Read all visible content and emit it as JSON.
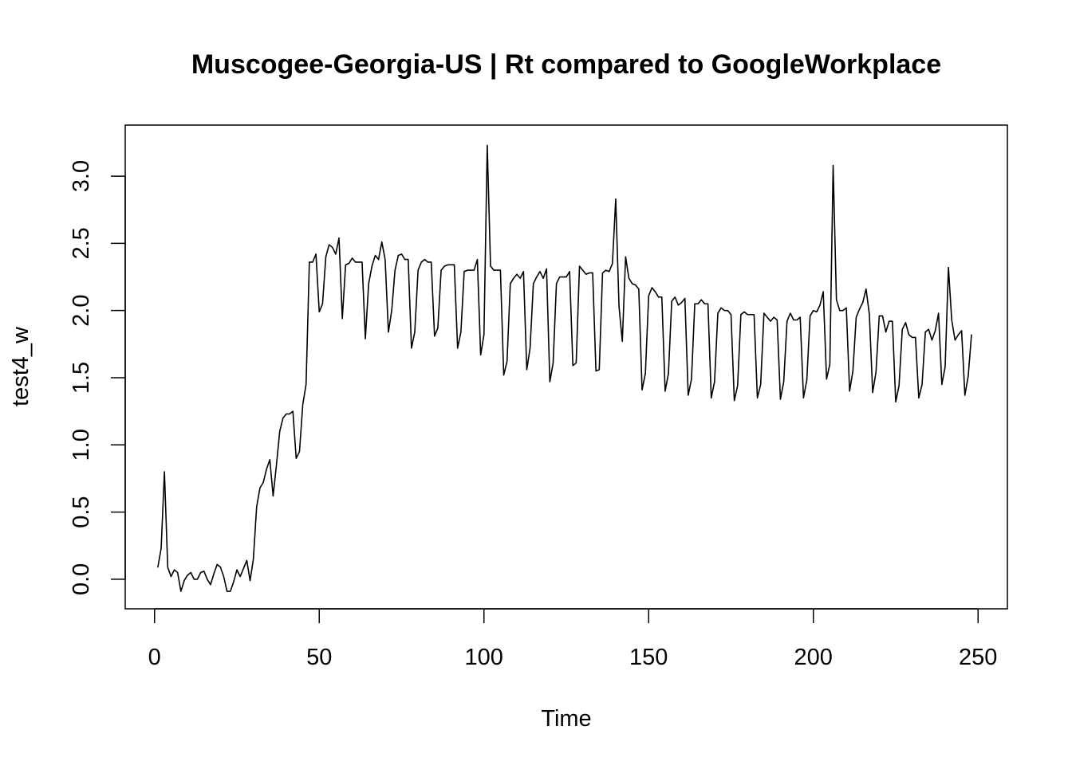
{
  "chart_data": {
    "type": "line",
    "title": "Muscogee-Georgia-US | Rt compared to GoogleWorkplace",
    "xlabel": "Time",
    "ylabel": "test4_w",
    "xlim": [
      -8.9,
      258.9
    ],
    "ylim": [
      -0.22,
      3.38
    ],
    "xticks": [
      0,
      50,
      100,
      150,
      200,
      250
    ],
    "yticks": [
      0.0,
      0.5,
      1.0,
      1.5,
      2.0,
      2.5,
      3.0
    ],
    "xtick_labels": [
      "0",
      "50",
      "100",
      "150",
      "200",
      "250"
    ],
    "ytick_labels": [
      "0.0",
      "0.5",
      "1.0",
      "1.5",
      "2.0",
      "2.5",
      "3.0"
    ],
    "grid": false,
    "color": "#000000",
    "series": [
      {
        "x_start": 1,
        "values": [
          0.09,
          0.23,
          0.8,
          0.09,
          0.02,
          0.07,
          0.05,
          -0.09,
          -0.01,
          0.03,
          0.05,
          0.0,
          0.0,
          0.05,
          0.06,
          0.0,
          -0.04,
          0.04,
          0.11,
          0.09,
          0.02,
          -0.09,
          -0.09,
          -0.02,
          0.07,
          0.02,
          0.08,
          0.14,
          -0.01,
          0.15,
          0.54,
          0.68,
          0.72,
          0.82,
          0.89,
          0.62,
          0.85,
          1.1,
          1.2,
          1.23,
          1.23,
          1.25,
          0.9,
          0.95,
          1.3,
          1.45,
          2.36,
          2.36,
          2.42,
          1.99,
          2.05,
          2.4,
          2.49,
          2.47,
          2.42,
          2.54,
          1.94,
          2.34,
          2.35,
          2.39,
          2.36,
          2.36,
          2.36,
          1.79,
          2.2,
          2.33,
          2.41,
          2.38,
          2.51,
          2.38,
          1.84,
          2.0,
          2.3,
          2.41,
          2.42,
          2.38,
          2.38,
          1.72,
          1.84,
          2.3,
          2.36,
          2.38,
          2.36,
          2.36,
          1.81,
          1.87,
          2.3,
          2.33,
          2.34,
          2.34,
          2.34,
          1.72,
          1.84,
          2.29,
          2.3,
          2.3,
          2.3,
          2.38,
          1.67,
          1.82,
          3.23,
          2.33,
          2.3,
          2.3,
          2.3,
          1.52,
          1.62,
          2.2,
          2.24,
          2.27,
          2.24,
          2.29,
          1.56,
          1.72,
          2.2,
          2.25,
          2.29,
          2.24,
          2.31,
          1.47,
          1.61,
          2.2,
          2.25,
          2.25,
          2.25,
          2.29,
          1.59,
          1.61,
          2.33,
          2.3,
          2.27,
          2.28,
          2.28,
          1.55,
          1.56,
          2.28,
          2.3,
          2.29,
          2.35,
          2.83,
          2.03,
          1.77,
          2.4,
          2.24,
          2.2,
          2.19,
          2.16,
          1.41,
          1.53,
          2.11,
          2.17,
          2.14,
          2.1,
          2.1,
          1.4,
          1.53,
          2.07,
          2.1,
          2.04,
          2.06,
          2.09,
          1.37,
          1.49,
          2.05,
          2.05,
          2.08,
          2.05,
          2.05,
          1.35,
          1.47,
          1.98,
          2.02,
          2.0,
          2.0,
          1.97,
          1.33,
          1.44,
          1.97,
          1.99,
          1.97,
          1.97,
          1.97,
          1.35,
          1.45,
          1.98,
          1.95,
          1.92,
          1.95,
          1.93,
          1.34,
          1.47,
          1.92,
          1.98,
          1.93,
          1.93,
          1.95,
          1.35,
          1.48,
          1.96,
          2.0,
          1.99,
          2.04,
          2.14,
          1.49,
          1.6,
          3.08,
          2.08,
          2.0,
          2.0,
          2.02,
          1.4,
          1.55,
          1.95,
          2.01,
          2.06,
          2.16,
          1.97,
          1.39,
          1.54,
          1.96,
          1.96,
          1.84,
          1.92,
          1.92,
          1.32,
          1.44,
          1.86,
          1.91,
          1.82,
          1.8,
          1.8,
          1.35,
          1.45,
          1.84,
          1.86,
          1.78,
          1.85,
          1.98,
          1.45,
          1.58,
          2.32,
          1.93,
          1.78,
          1.82,
          1.85,
          1.37,
          1.51,
          1.82
        ]
      }
    ]
  }
}
